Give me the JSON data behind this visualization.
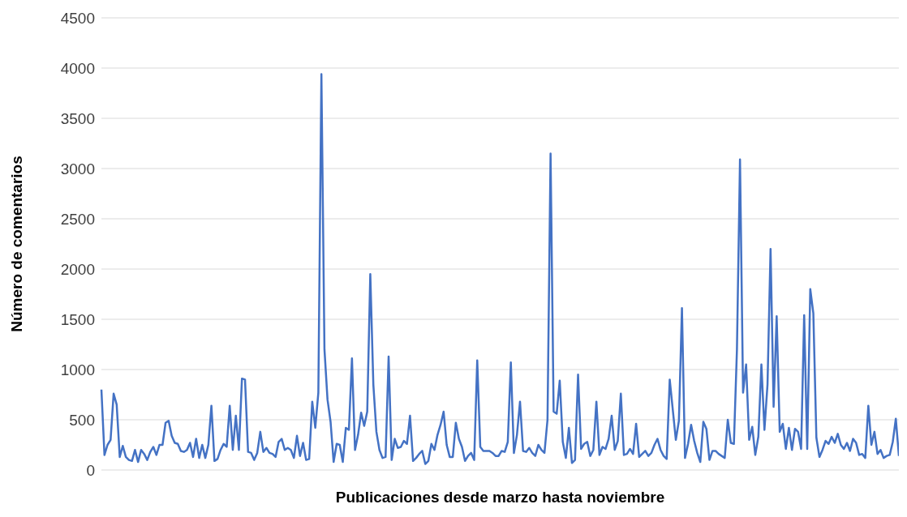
{
  "chart_data": {
    "type": "line",
    "xlabel": "Publicaciones desde marzo hasta noviembre",
    "ylabel": "Número de comentarios",
    "categories": [
      null,
      null,
      null,
      null,
      null,
      null,
      null,
      null,
      null,
      null,
      null,
      null,
      null,
      null,
      null,
      null,
      null,
      null,
      null,
      null,
      null,
      null,
      null,
      null,
      null,
      null,
      null,
      null,
      null,
      null,
      null,
      null,
      null,
      null,
      null,
      null,
      null,
      null,
      null,
      null,
      null,
      null,
      null,
      null,
      null,
      null,
      null,
      null,
      null,
      null,
      null,
      null,
      null,
      null,
      null,
      null,
      null,
      null,
      null,
      null,
      null,
      null,
      null,
      null,
      null,
      null,
      null,
      null,
      null,
      null,
      null,
      null,
      null,
      null,
      null,
      null,
      null,
      null,
      null,
      null,
      null,
      null,
      null,
      null,
      null,
      null,
      null,
      null,
      null,
      null,
      null,
      null,
      null,
      null,
      null,
      null,
      null,
      null,
      null,
      null,
      null,
      null,
      null,
      null,
      null,
      null,
      null,
      null,
      null,
      null,
      null,
      null,
      null,
      null,
      null,
      null,
      null,
      null,
      null,
      null,
      null,
      null,
      null,
      null,
      null,
      null,
      null,
      null,
      null,
      null,
      null,
      null,
      null,
      null,
      null,
      null,
      null,
      null,
      null,
      null,
      null,
      null,
      null,
      null,
      null,
      null,
      null,
      null,
      null,
      null,
      null,
      null,
      null,
      null,
      null,
      null,
      null,
      null,
      null,
      null,
      null,
      null,
      null,
      null,
      null,
      null,
      null,
      null,
      null,
      null,
      null,
      null,
      null,
      null,
      null,
      null,
      null,
      null,
      null,
      null,
      null,
      null,
      null,
      null,
      null,
      null,
      null,
      null,
      null,
      null,
      null,
      null,
      null,
      null,
      null,
      null,
      null,
      null,
      null,
      null,
      null,
      null,
      null,
      null,
      null,
      null,
      null,
      null,
      null,
      null,
      null,
      null,
      null,
      null,
      null,
      null,
      null,
      null,
      null,
      null,
      null,
      null,
      null,
      null,
      null,
      null,
      null,
      null,
      null,
      null,
      null,
      null,
      null,
      null,
      null,
      null,
      null,
      null,
      null,
      null,
      null,
      null,
      null,
      null,
      null,
      null,
      null,
      null,
      null,
      null,
      null,
      null,
      null,
      null,
      null,
      null,
      null,
      null,
      null,
      null,
      null,
      null
    ],
    "series": [
      {
        "color": "#4472c4",
        "values": [
          800,
          150,
          250,
          300,
          760,
          650,
          130,
          240,
          130,
          100,
          90,
          200,
          80,
          200,
          160,
          100,
          180,
          230,
          150,
          250,
          250,
          470,
          490,
          340,
          270,
          260,
          190,
          180,
          200,
          270,
          130,
          310,
          120,
          250,
          120,
          250,
          640,
          90,
          110,
          200,
          260,
          230,
          640,
          200,
          540,
          200,
          910,
          900,
          180,
          170,
          100,
          170,
          380,
          180,
          220,
          170,
          160,
          130,
          280,
          310,
          200,
          220,
          200,
          120,
          340,
          140,
          270,
          100,
          110,
          680,
          420,
          770,
          3940,
          1200,
          700,
          480,
          80,
          260,
          250,
          80,
          420,
          400,
          1110,
          200,
          350,
          570,
          440,
          580,
          1950,
          850,
          380,
          200,
          120,
          130,
          1130,
          100,
          310,
          220,
          230,
          290,
          260,
          540,
          90,
          120,
          160,
          190,
          60,
          90,
          260,
          200,
          350,
          450,
          580,
          250,
          130,
          130,
          470,
          310,
          230,
          90,
          140,
          170,
          100,
          1090,
          230,
          190,
          190,
          190,
          170,
          140,
          140,
          190,
          180,
          280,
          1070,
          170,
          350,
          680,
          190,
          180,
          220,
          170,
          140,
          250,
          200,
          170,
          500,
          3150,
          580,
          560,
          890,
          280,
          120,
          420,
          70,
          100,
          950,
          210,
          260,
          280,
          140,
          200,
          680,
          150,
          230,
          210,
          310,
          540,
          200,
          290,
          760,
          150,
          160,
          210,
          160,
          460,
          130,
          160,
          190,
          140,
          170,
          250,
          310,
          200,
          140,
          110,
          900,
          600,
          300,
          490,
          1610,
          120,
          260,
          450,
          290,
          170,
          80,
          480,
          410,
          100,
          190,
          190,
          160,
          140,
          120,
          500,
          270,
          260,
          1200,
          3090,
          770,
          1050,
          300,
          430,
          150,
          330,
          1050,
          400,
          850,
          2200,
          630,
          1530,
          380,
          460,
          210,
          420,
          200,
          410,
          380,
          210,
          1540,
          210,
          1800,
          1560,
          320,
          130,
          200,
          290,
          260,
          330,
          270,
          360,
          250,
          210,
          270,
          190,
          310,
          270,
          150,
          160,
          120,
          640,
          250,
          380,
          160,
          200,
          120,
          140,
          150,
          280,
          510,
          140
        ]
      }
    ],
    "ylim": [
      0,
      4500
    ],
    "yticks": [
      0,
      500,
      1000,
      1500,
      2000,
      2500,
      3000,
      3500,
      4000,
      4500
    ],
    "grid": "y",
    "marker": "none",
    "line_style": "solid",
    "legend": false
  }
}
